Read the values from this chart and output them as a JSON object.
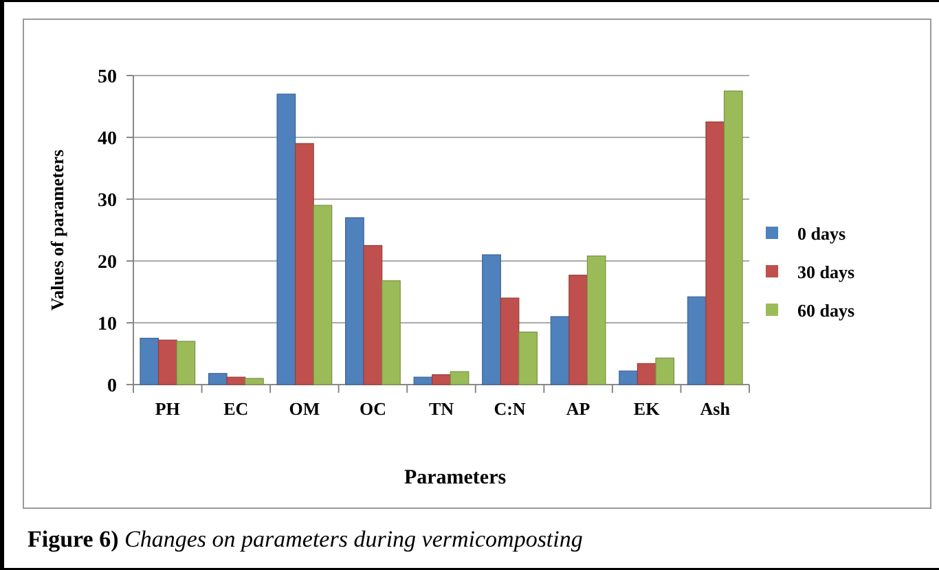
{
  "chart_data": {
    "type": "bar",
    "xlabel": "Parameters",
    "ylabel": "Values of parameters",
    "annotations": [
      "Figure 6)",
      "Changes on parameters during vermicomposting"
    ],
    "categories": [
      "PH",
      "EC",
      "OM",
      "OC",
      "TN",
      "C:N",
      "AP",
      "EK",
      "Ash"
    ],
    "series": [
      {
        "name": "0 days",
        "color": "#4f81bd",
        "values": [
          7.5,
          1.8,
          47,
          27,
          1.2,
          21,
          11,
          2.2,
          14.2
        ]
      },
      {
        "name": "30 days",
        "color": "#c0504d",
        "values": [
          7.2,
          1.2,
          39,
          22.5,
          1.6,
          14,
          17.7,
          3.4,
          42.5
        ]
      },
      {
        "name": "60 days",
        "color": "#9bbb59",
        "values": [
          7,
          1,
          29,
          16.8,
          2.1,
          8.5,
          20.8,
          4.3,
          47.5
        ]
      }
    ],
    "ylim": [
      0,
      50
    ],
    "yticks": [
      0,
      10,
      20,
      30,
      40,
      50
    ],
    "grid": "y",
    "legend": "right"
  }
}
